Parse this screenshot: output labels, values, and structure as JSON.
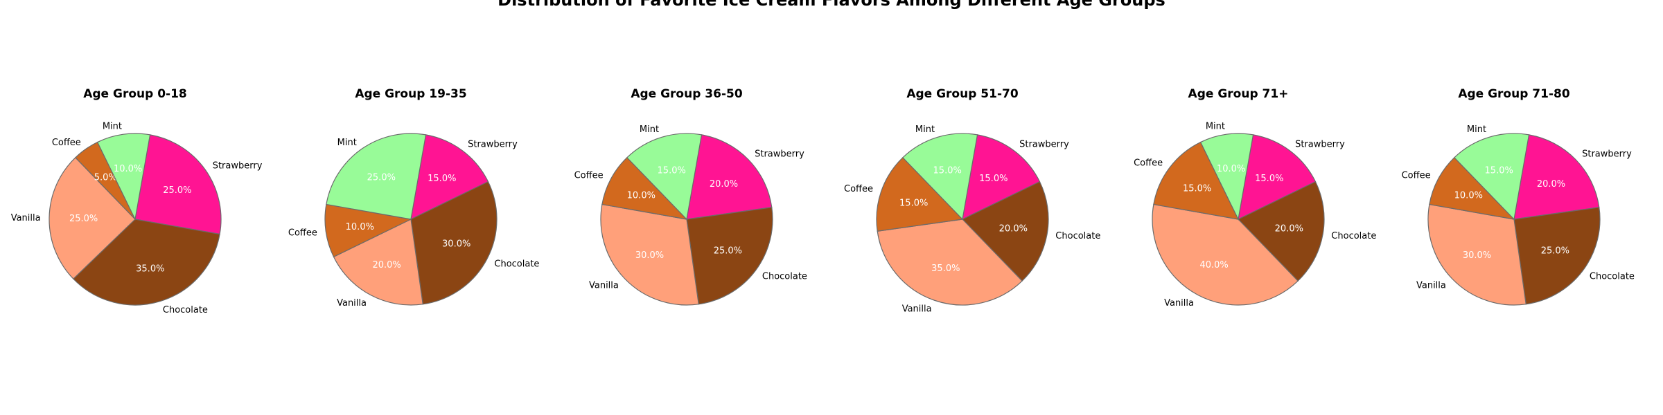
{
  "title": "Distribution of Favorite Ice Cream Flavors Among Different Age Groups",
  "colors": {
    "Strawberry": "#ff1493",
    "Chocolate": "#8b4513",
    "Vanilla": "#ffa07a",
    "Coffee": "#d2691e",
    "Mint": "#98fb98"
  },
  "chart_data": [
    {
      "type": "pie",
      "title": "Age Group 0-18",
      "labels": [
        "Strawberry",
        "Chocolate",
        "Vanilla",
        "Coffee",
        "Mint"
      ],
      "values": [
        25.0,
        35.0,
        25.0,
        5.0,
        10.0
      ],
      "value_labels": [
        "25.0%",
        "35.0%",
        "25.0%",
        "5.0%",
        "10.0%"
      ]
    },
    {
      "type": "pie",
      "title": "Age Group 19-35",
      "labels": [
        "Strawberry",
        "Chocolate",
        "Vanilla",
        "Coffee",
        "Mint"
      ],
      "values": [
        15.0,
        30.0,
        20.0,
        10.0,
        25.0
      ],
      "value_labels": [
        "15.0%",
        "30.0%",
        "20.0%",
        "10.0%",
        "25.0%"
      ]
    },
    {
      "type": "pie",
      "title": "Age Group 36-50",
      "labels": [
        "Strawberry",
        "Chocolate",
        "Vanilla",
        "Coffee",
        "Mint"
      ],
      "values": [
        20.0,
        25.0,
        30.0,
        10.0,
        15.0
      ],
      "value_labels": [
        "20.0%",
        "25.0%",
        "30.0%",
        "10.0%",
        "15.0%"
      ]
    },
    {
      "type": "pie",
      "title": "Age Group 51-70",
      "labels": [
        "Strawberry",
        "Chocolate",
        "Vanilla",
        "Coffee",
        "Mint"
      ],
      "values": [
        15.0,
        20.0,
        35.0,
        15.0,
        15.0
      ],
      "value_labels": [
        "15.0%",
        "20.0%",
        "35.0%",
        "15.0%",
        "15.0%"
      ]
    },
    {
      "type": "pie",
      "title": "Age Group 71+",
      "labels": [
        "Strawberry",
        "Chocolate",
        "Vanilla",
        "Coffee",
        "Mint"
      ],
      "values": [
        15.0,
        20.0,
        40.0,
        15.0,
        10.0
      ],
      "value_labels": [
        "15.0%",
        "20.0%",
        "40.0%",
        "15.0%",
        "10.0%"
      ]
    },
    {
      "type": "pie",
      "title": "Age Group 71-80",
      "labels": [
        "Strawberry",
        "Chocolate",
        "Vanilla",
        "Coffee",
        "Mint"
      ],
      "values": [
        20.0,
        25.0,
        30.0,
        10.0,
        15.0
      ],
      "value_labels": [
        "20.0%",
        "25.0%",
        "30.0%",
        "10.0%",
        "15.0%"
      ]
    }
  ]
}
